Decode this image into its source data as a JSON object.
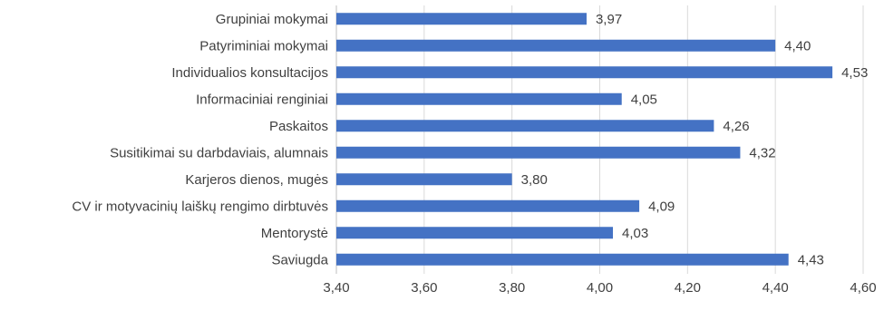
{
  "chart_data": {
    "type": "bar",
    "orientation": "horizontal",
    "categories": [
      "Grupiniai mokymai",
      "Patyriminiai mokymai",
      "Individualios konsultacijos",
      "Informaciniai renginiai",
      "Paskaitos",
      "Susitikimai su darbdaviais, alumnais",
      "Karjeros dienos, mugės",
      "CV ir motyvacinių laiškų rengimo dirbtuvės",
      "Mentorystė",
      "Saviugda"
    ],
    "values": [
      3.97,
      4.4,
      4.53,
      4.05,
      4.26,
      4.32,
      3.8,
      4.09,
      4.03,
      4.43
    ],
    "value_labels": [
      "3,97",
      "4,40",
      "4,53",
      "4,05",
      "4,26",
      "4,32",
      "3,80",
      "4,09",
      "4,03",
      "4,43"
    ],
    "xlim": [
      3.4,
      4.6
    ],
    "x_ticks": [
      3.4,
      3.6,
      3.8,
      4.0,
      4.2,
      4.4,
      4.6
    ],
    "x_tick_labels": [
      "3,40",
      "3,60",
      "3,80",
      "4,00",
      "4,20",
      "4,40",
      "4,60"
    ],
    "grid": "vertical",
    "colors": {
      "bar": "#4472c4",
      "grid": "#d9d9d9",
      "text": "#404040",
      "axis": "#bfbfbf"
    }
  }
}
